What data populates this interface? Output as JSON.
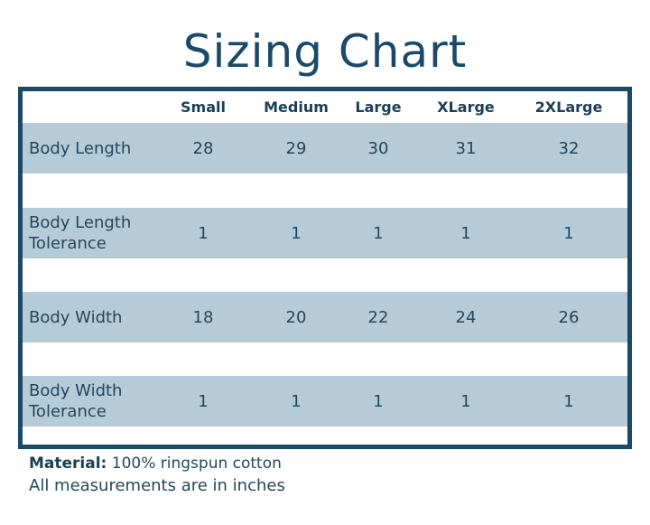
{
  "title": "Sizing Chart",
  "table": {
    "columns": [
      "Small",
      "Medium",
      "Large",
      "XLarge",
      "2XLarge"
    ],
    "rows": [
      {
        "label": "Body Length",
        "values": [
          "28",
          "29",
          "30",
          "31",
          "32"
        ]
      },
      {
        "label": "Body Length Tolerance",
        "values": [
          "1",
          "1",
          "1",
          "1",
          "1"
        ]
      },
      {
        "label": "Body Width",
        "values": [
          "18",
          "20",
          "22",
          "24",
          "26"
        ]
      },
      {
        "label": "Body Width Tolerance",
        "values": [
          "1",
          "1",
          "1",
          "1",
          "1"
        ]
      }
    ]
  },
  "footer": {
    "material_label": "Material:",
    "material_value": "100% ringspun cotton",
    "note": "All measurements are in inches"
  },
  "colors": {
    "border": "#1b4a66",
    "row_shade": "#b5cbd8",
    "title": "#1b4a68"
  }
}
